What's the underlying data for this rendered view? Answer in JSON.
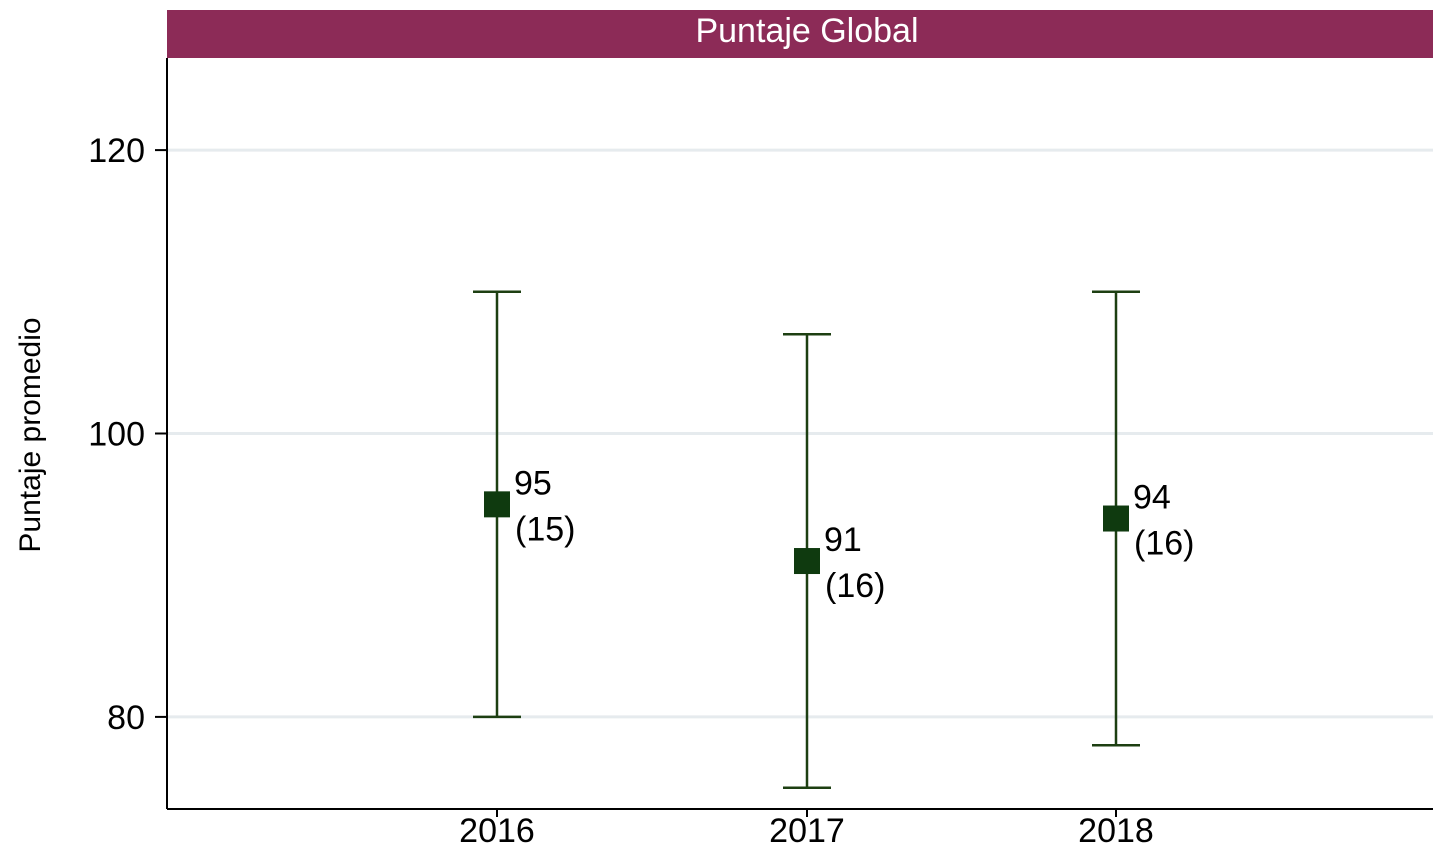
{
  "chart_data": {
    "type": "scatter",
    "title": "Puntaje Global",
    "xlabel": "",
    "ylabel": "Puntaje promedio",
    "categories": [
      "2016",
      "2017",
      "2018"
    ],
    "series": [
      {
        "values": [
          95,
          91,
          94
        ],
        "sd_labels": [
          "(15)",
          "(16)",
          "(16)"
        ],
        "lower": [
          80,
          75,
          78
        ],
        "upper": [
          110,
          107,
          110
        ]
      }
    ],
    "value_labels": [
      "95",
      "91",
      "94"
    ],
    "y_ticks": [
      80,
      100,
      120
    ],
    "y_tick_labels": [
      "80",
      "100",
      "120"
    ],
    "ylim": [
      73.5,
      126.5
    ],
    "grid": true,
    "colors": {
      "marker": "#0f3a0f",
      "whisker": "#1d3f12",
      "title_band": "#8c2b57",
      "grid": "#e6ebee",
      "axis": "#000000"
    }
  }
}
